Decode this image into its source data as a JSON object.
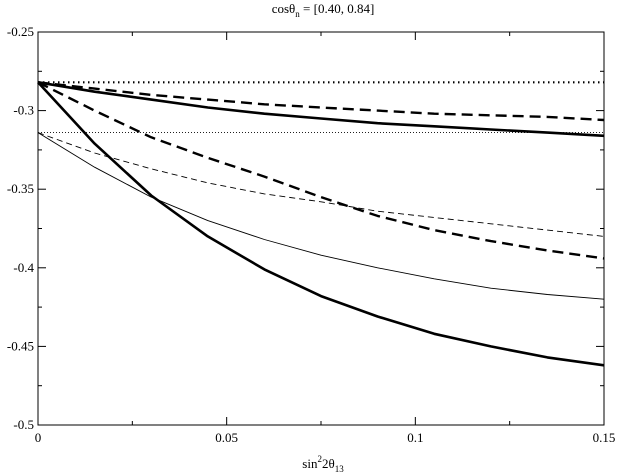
{
  "chart_data": {
    "type": "line",
    "title": {
      "prefix": "cos",
      "symbol": "θ",
      "subscript": "n",
      "suffix": " = [0.40, 0.84]"
    },
    "xlabel": {
      "prefix": "sin",
      "superscript": "2",
      "symbol": "2θ",
      "subscript": "13"
    },
    "ylabel": "",
    "xlim": [
      0,
      0.15
    ],
    "ylim": [
      -0.5,
      -0.25
    ],
    "xticks": [
      0,
      0.05,
      0.1,
      0.15
    ],
    "xtick_labels": [
      "0",
      "0.05",
      "0.1",
      "0.15"
    ],
    "yticks": [
      -0.5,
      -0.45,
      -0.4,
      -0.35,
      -0.3,
      -0.25
    ],
    "ytick_labels": [
      "-0.5",
      "-0.45",
      "-0.4",
      "-0.35",
      "-0.3",
      "-0.25"
    ],
    "grid": false,
    "legend": "none",
    "x": [
      0,
      0.015,
      0.03,
      0.045,
      0.06,
      0.075,
      0.09,
      0.105,
      0.12,
      0.135,
      0.15
    ],
    "series": [
      {
        "style": "dotted-thick",
        "values": [
          -0.282,
          -0.282,
          -0.282,
          -0.282,
          -0.282,
          -0.282,
          -0.282,
          -0.282,
          -0.282,
          -0.282,
          -0.282
        ]
      },
      {
        "style": "solid-thick",
        "values": [
          -0.282,
          -0.288,
          -0.293,
          -0.298,
          -0.302,
          -0.305,
          -0.308,
          -0.31,
          -0.312,
          -0.314,
          -0.316
        ]
      },
      {
        "style": "dashed-thick",
        "values": [
          -0.282,
          -0.286,
          -0.29,
          -0.293,
          -0.296,
          -0.298,
          -0.3,
          -0.302,
          -0.303,
          -0.304,
          -0.306
        ]
      },
      {
        "style": "dashed-thick",
        "values": [
          -0.282,
          -0.3,
          -0.317,
          -0.33,
          -0.342,
          -0.355,
          -0.367,
          -0.376,
          -0.383,
          -0.389,
          -0.394
        ]
      },
      {
        "style": "solid-thick",
        "values": [
          -0.282,
          -0.321,
          -0.354,
          -0.38,
          -0.401,
          -0.418,
          -0.431,
          -0.442,
          -0.45,
          -0.457,
          -0.462
        ]
      },
      {
        "style": "dotted-thin",
        "values": [
          -0.314,
          -0.314,
          -0.314,
          -0.314,
          -0.314,
          -0.314,
          -0.314,
          -0.314,
          -0.314,
          -0.314,
          -0.314
        ]
      },
      {
        "style": "dashed-thin",
        "values": [
          -0.314,
          -0.327,
          -0.337,
          -0.346,
          -0.353,
          -0.358,
          -0.364,
          -0.368,
          -0.372,
          -0.376,
          -0.38
        ]
      },
      {
        "style": "solid-thin",
        "values": [
          -0.314,
          -0.336,
          -0.355,
          -0.37,
          -0.382,
          -0.392,
          -0.4,
          -0.407,
          -0.413,
          -0.417,
          -0.42
        ]
      }
    ]
  }
}
